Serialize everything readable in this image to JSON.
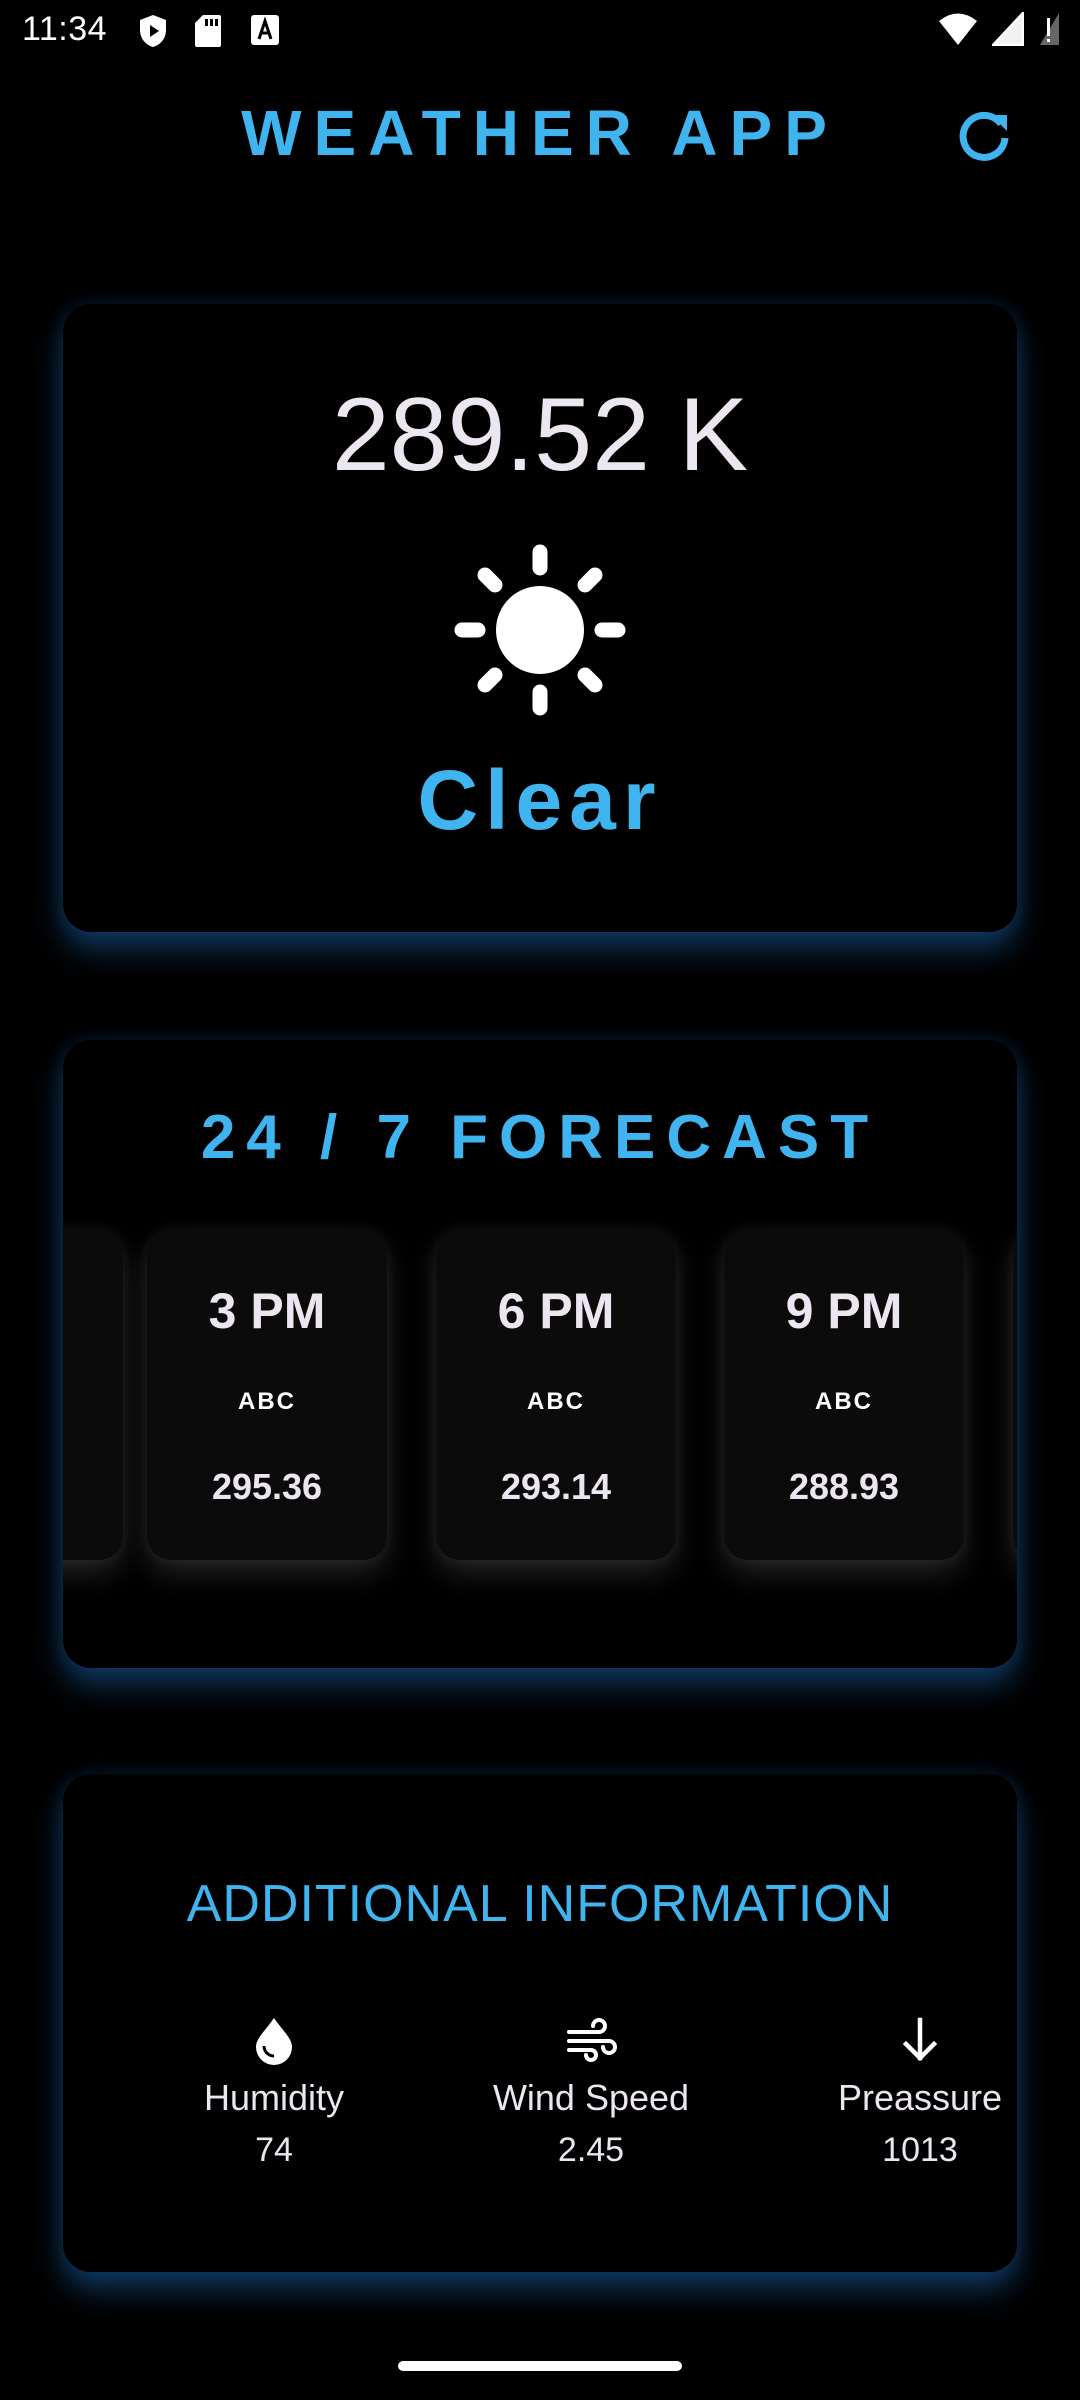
{
  "status_bar": {
    "time": "11:34",
    "left_icons": [
      "shield-play-icon",
      "sd-card-icon",
      "font-icon"
    ],
    "right_icons": [
      "wifi-icon",
      "cellular-signal-icon",
      "signal-no-data-icon"
    ]
  },
  "app_bar": {
    "title": "WEATHER APP",
    "refresh_icon": "refresh-icon"
  },
  "current": {
    "temperature": "289.52 K",
    "icon": "sun-icon",
    "condition": "Clear"
  },
  "forecast": {
    "title": "24 / 7 FORECAST",
    "items": [
      {
        "time": "3 PM",
        "icon_text": "ABC",
        "temp": "295.36"
      },
      {
        "time": "6 PM",
        "icon_text": "ABC",
        "temp": "293.14"
      },
      {
        "time": "9 PM",
        "icon_text": "ABC",
        "temp": "288.93"
      }
    ]
  },
  "additional": {
    "title": "ADDITIONAL INFORMATION",
    "items": [
      {
        "icon": "water-drop-icon",
        "label": "Humidity",
        "value": "74"
      },
      {
        "icon": "wind-icon",
        "label": "Wind Speed",
        "value": "2.45"
      },
      {
        "icon": "arrow-down-icon",
        "label": "Preassure",
        "value": "1013"
      }
    ]
  },
  "colors": {
    "accent": "#3fb4ee",
    "background": "#000000",
    "card_glow": "#1e6ebe",
    "text": "#ece6f0"
  }
}
